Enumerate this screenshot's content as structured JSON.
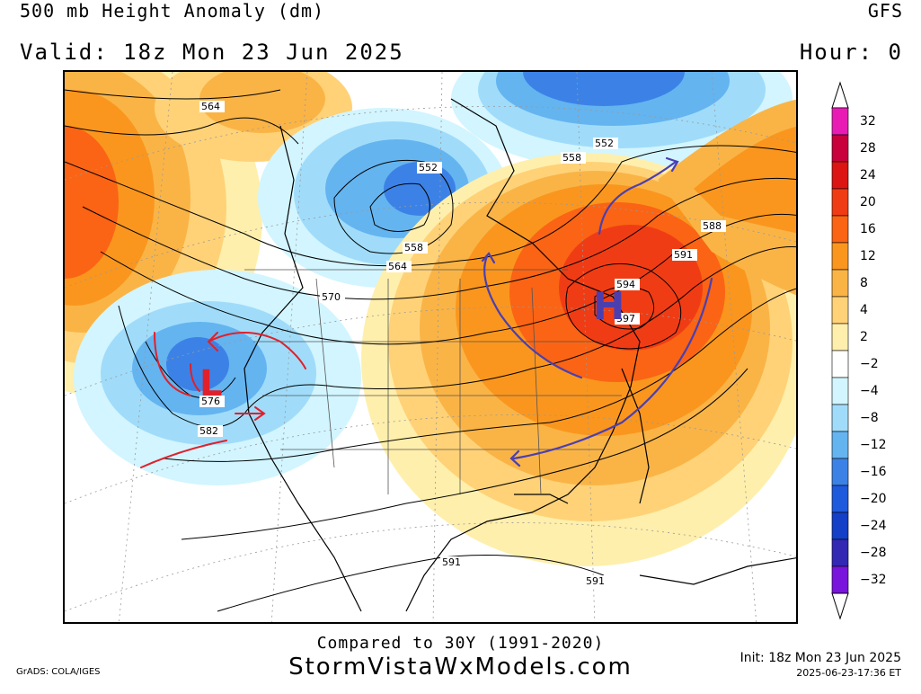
{
  "header": {
    "title": "500 mb Height Anomaly (dm)",
    "valid": "Valid: 18z Mon 23 Jun 2025",
    "model": "GFS",
    "hour": "Hour: 0"
  },
  "colorbar": {
    "labels": [
      "32",
      "28",
      "24",
      "20",
      "16",
      "12",
      "8",
      "4",
      "2",
      "-2",
      "-4",
      "-8",
      "-12",
      "-16",
      "-20",
      "-24",
      "-28",
      "-32"
    ],
    "colors": [
      "#e81cb4",
      "#c8003c",
      "#dc1414",
      "#f03c14",
      "#fa6414",
      "#fa961e",
      "#fab446",
      "#ffd278",
      "#ffefac",
      "#ffffff",
      "#d2f5ff",
      "#a0dcfa",
      "#64b4f0",
      "#3c82e6",
      "#1e5adc",
      "#1440c8",
      "#3228b4",
      "#7814dc"
    ]
  },
  "contours": {
    "labels": [
      "564",
      "552",
      "558",
      "552",
      "558",
      "564",
      "570",
      "576",
      "582",
      "588",
      "591",
      "594",
      "597",
      "591",
      "591"
    ]
  },
  "annotations": {
    "high_symbol": "H",
    "low_symbol": "L"
  },
  "footer": {
    "compared": "Compared to 30Y (1991-2020)",
    "site": "StormVistaWxModels.com",
    "grads": "GrADS: COLA/IGES",
    "init": "Init: 18z Mon 23 Jun 2025",
    "stamp": "2025-06-23-17:36 ET"
  }
}
